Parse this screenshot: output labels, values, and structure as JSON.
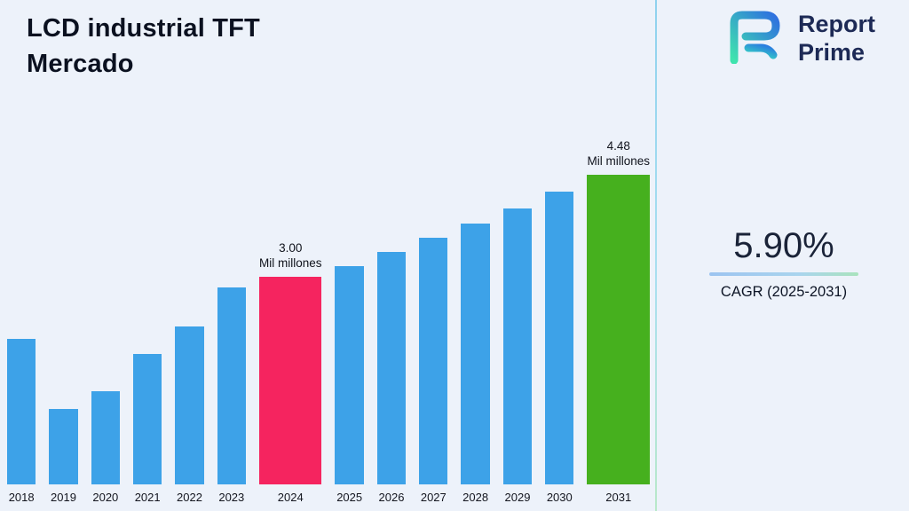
{
  "page": {
    "background": "#edf2fa"
  },
  "header": {
    "title_line1": "LCD industrial TFT",
    "title_line2": "Mercado"
  },
  "logo": {
    "name": "Report Prime",
    "line1": "Report",
    "line2": "Prime",
    "text_color": "#1d2a56",
    "mark_gradient_start": "#3fe3ae",
    "mark_gradient_end": "#2f6fe0"
  },
  "stats": {
    "cagr_value": "5.90%",
    "cagr_label": "CAGR (2025-2031)"
  },
  "chart_data": {
    "type": "bar",
    "title": "LCD industrial TFT Mercado",
    "unit": "Mil millones",
    "categories": [
      "2018",
      "2019",
      "2020",
      "2021",
      "2022",
      "2023",
      "2024",
      "2025",
      "2026",
      "2027",
      "2028",
      "2029",
      "2030",
      "2031"
    ],
    "values": [
      2.1,
      1.09,
      1.34,
      1.88,
      2.28,
      2.85,
      3.0,
      3.16,
      3.36,
      3.56,
      3.77,
      3.99,
      4.23,
      4.48
    ],
    "ylim": [
      0,
      5
    ],
    "grid": false,
    "legend": "none",
    "bar_color_default": "#3da2e8",
    "bar_color_overrides": {
      "2024": "#f5245f",
      "2031": "#46b01e"
    },
    "annotations": [
      {
        "year": "2024",
        "value_label": "3.00",
        "unit_label": "Mil millones"
      },
      {
        "year": "2031",
        "value_label": "4.48",
        "unit_label": "Mil millones"
      }
    ]
  }
}
